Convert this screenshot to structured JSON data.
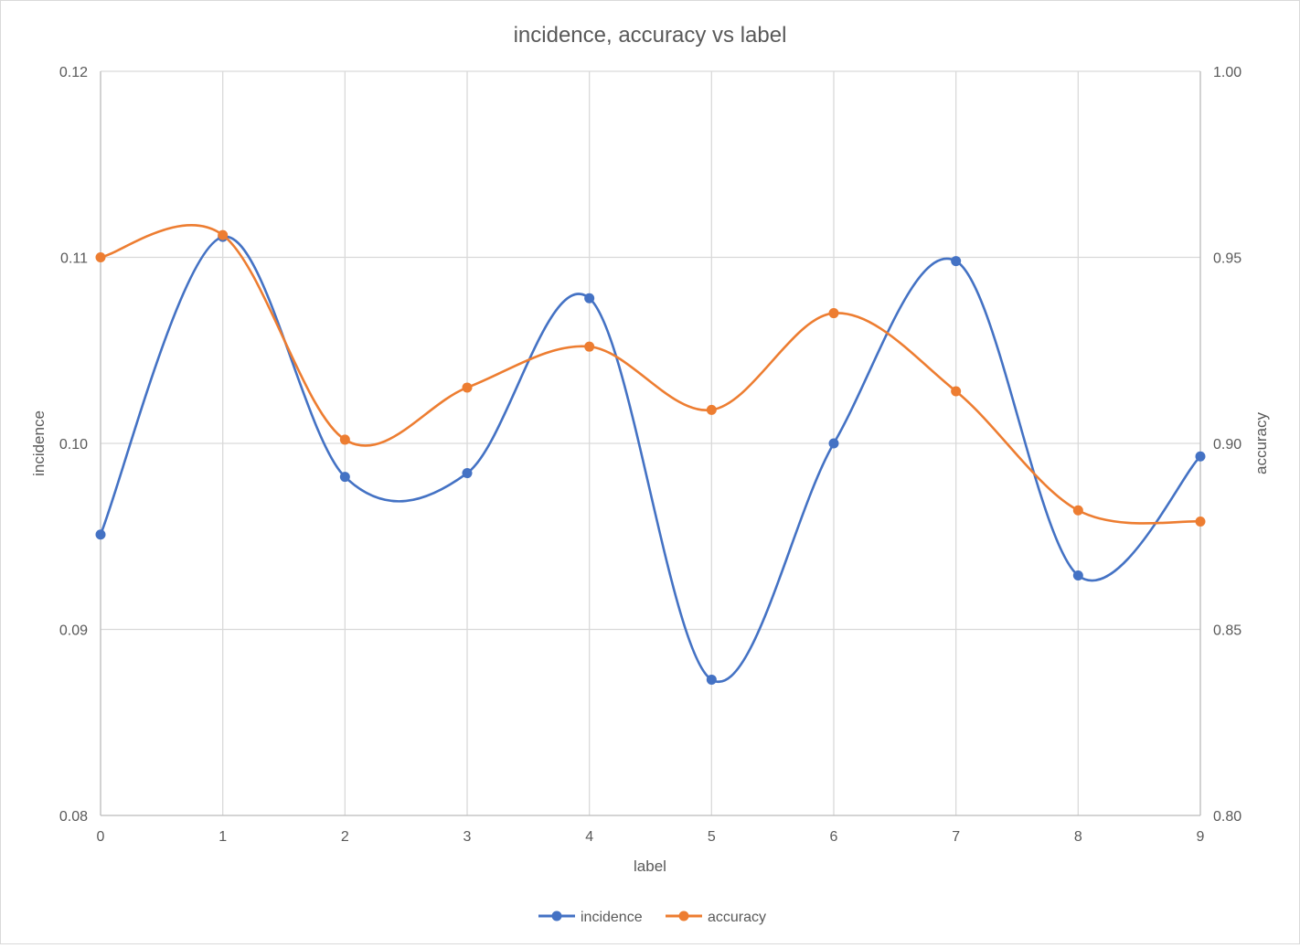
{
  "chart_data": {
    "type": "line",
    "title": "incidence, accuracy vs label",
    "xlabel": "label",
    "x": [
      0,
      1,
      2,
      3,
      4,
      5,
      6,
      7,
      8,
      9
    ],
    "xticks": [
      "0",
      "1",
      "2",
      "3",
      "4",
      "5",
      "6",
      "7",
      "8",
      "9"
    ],
    "y_left": {
      "label": "incidence",
      "lim": [
        0.08,
        0.12
      ],
      "ticks": [
        "0.08",
        "0.09",
        "0.10",
        "0.11",
        "0.12"
      ]
    },
    "y_right": {
      "label": "accuracy",
      "lim": [
        0.8,
        1.0
      ],
      "ticks": [
        "0.80",
        "0.85",
        "0.90",
        "0.95",
        "1.00"
      ]
    },
    "series": [
      {
        "name": "incidence",
        "axis": "left",
        "color": "#4472C4",
        "values": [
          0.0951,
          0.1111,
          0.0982,
          0.0984,
          0.1078,
          0.0873,
          0.1,
          0.1098,
          0.0929,
          0.0993
        ]
      },
      {
        "name": "accuracy",
        "axis": "right",
        "color": "#ED7D31",
        "values": [
          0.95,
          0.956,
          0.901,
          0.915,
          0.926,
          0.909,
          0.935,
          0.914,
          0.882,
          0.879
        ]
      }
    ],
    "smooth": true,
    "grid": true,
    "legend": "bottom"
  }
}
